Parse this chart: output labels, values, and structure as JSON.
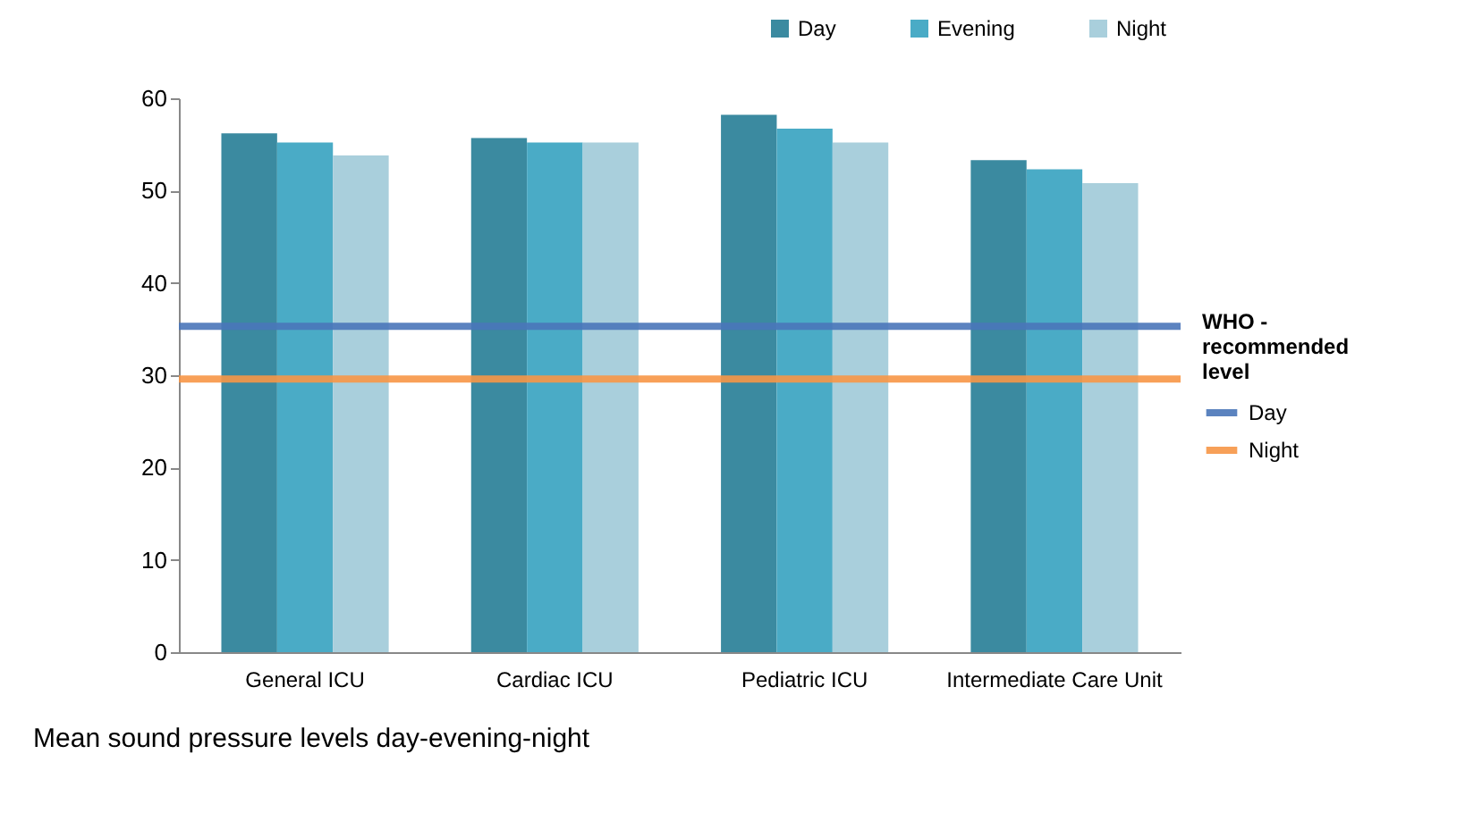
{
  "chart_data": {
    "type": "bar",
    "categories": [
      "General ICU",
      "Cardiac ICU",
      "Pediatric ICU",
      "Intermediate Care Unit"
    ],
    "series": [
      {
        "name": "Day",
        "color": "#3b8aa0",
        "values": [
          56.2,
          55.7,
          58.2,
          53.3
        ]
      },
      {
        "name": "Evening",
        "color": "#4aabc6",
        "values": [
          55.2,
          55.2,
          56.7,
          52.3
        ]
      },
      {
        "name": "Night",
        "color": "#a9cfdc",
        "values": [
          53.8,
          55.2,
          55.2,
          50.8
        ]
      }
    ],
    "ylim": [
      0,
      60
    ],
    "yticks": [
      0,
      10,
      20,
      30,
      40,
      50,
      60
    ],
    "grid": false,
    "legend": "top right",
    "legend_title": "WHO - recommended level",
    "ref_lines": [
      {
        "axis": "y",
        "value": 35.3,
        "label": "Day",
        "color": "#4a76b9"
      },
      {
        "axis": "y",
        "value": 29.6,
        "label": "Night",
        "color": "#f79646"
      }
    ],
    "annotations": [
      "Mean sound pressure levels day-evening-night"
    ]
  }
}
